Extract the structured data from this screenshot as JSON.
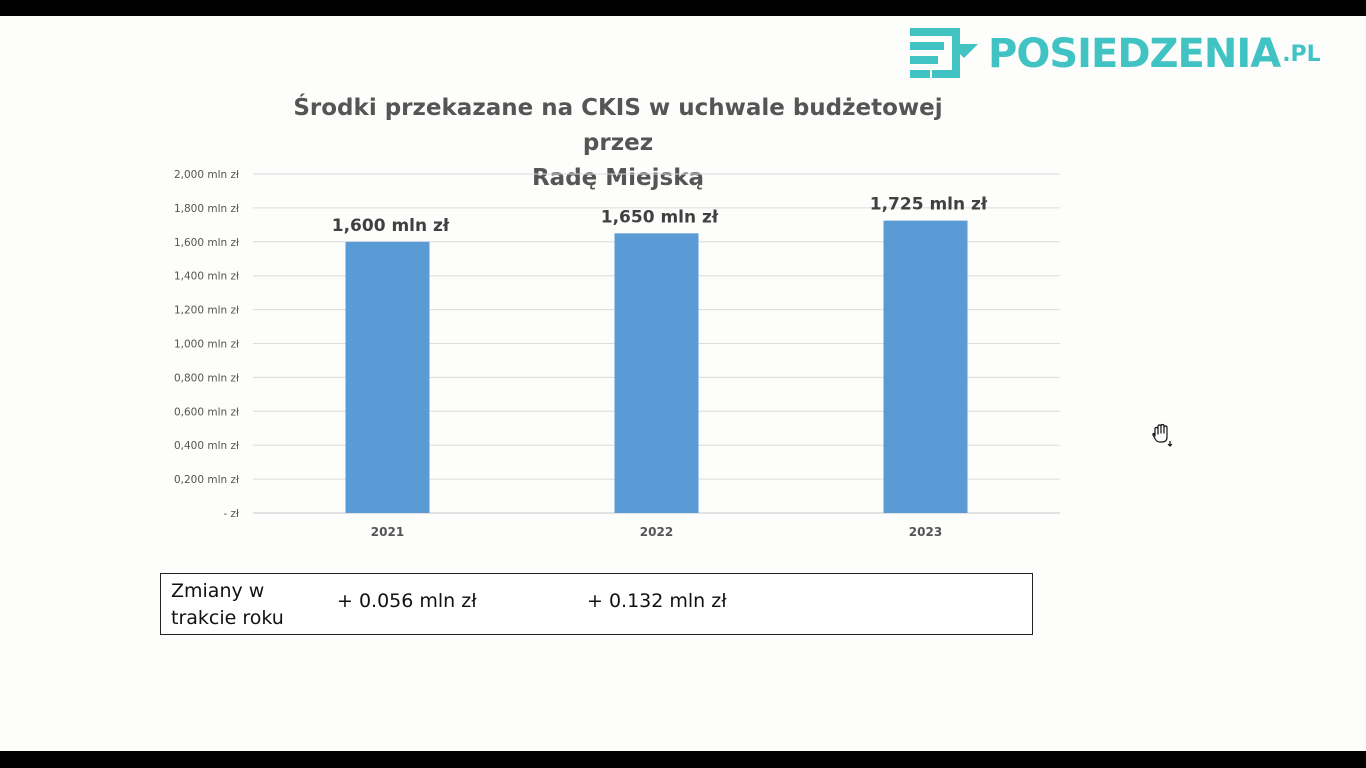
{
  "logo": {
    "text": "POSIEDZENIA",
    "suffix": ".PL",
    "color": "#41c3c4"
  },
  "chart_data": {
    "type": "bar",
    "title_line1": "Środki przekazane na CKIS w uchwale budżetowej przez",
    "title_line2": "Radę Miejską",
    "categories": [
      "2021",
      "2022",
      "2023"
    ],
    "values": [
      1.6,
      1.65,
      1.725
    ],
    "data_labels": [
      "1,600 mln zł",
      "1,650 mln zł",
      "1,725 mln zł"
    ],
    "ylim": [
      0,
      2.0
    ],
    "yticks": [
      0,
      0.2,
      0.4,
      0.6,
      0.8,
      1.0,
      1.2,
      1.4,
      1.6,
      1.8,
      2.0
    ],
    "ytick_labels": [
      "-  zł",
      "0,200 mln zł",
      "0,400 mln zł",
      "0,600 mln zł",
      "0,800 mln zł",
      "1,000 mln zł",
      "1,200 mln zł",
      "1,400 mln zł",
      "1,600 mln zł",
      "1,800 mln zł",
      "2,000 mln zł"
    ],
    "bar_color": "#5b9bd5",
    "grid": true,
    "legend": "none"
  },
  "changes": {
    "label": "Zmiany w trakcie roku",
    "value_1": "+ 0.056 mln zł",
    "value_2": "+ 0.132 mln zł"
  }
}
